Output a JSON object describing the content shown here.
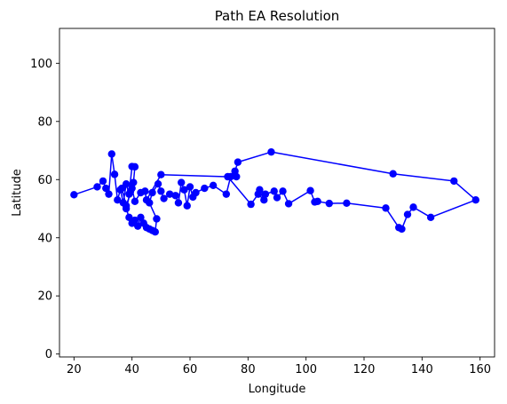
{
  "chart_data": {
    "type": "line",
    "title": "Path EA Resolution",
    "xlabel": "Longitude",
    "ylabel": "Latitude",
    "xlim": [
      15,
      165
    ],
    "ylim": [
      -1,
      112
    ],
    "xticks": [
      20,
      40,
      60,
      80,
      100,
      120,
      140,
      160
    ],
    "yticks": [
      0,
      20,
      40,
      60,
      80,
      100
    ],
    "grid": false,
    "legend": "none",
    "series": [
      {
        "color": "#0000ff",
        "marker": "circle",
        "points": [
          [
            20.0,
            54.8
          ],
          [
            28.0,
            57.5
          ],
          [
            30.0,
            59.5
          ],
          [
            31.0,
            57.0
          ],
          [
            32.0,
            55.0
          ],
          [
            33.0,
            68.8
          ],
          [
            34.0,
            61.8
          ],
          [
            35.0,
            53.0
          ],
          [
            36.0,
            56.5
          ],
          [
            37.0,
            52.0
          ],
          [
            38.0,
            58.5
          ],
          [
            39.0,
            55.0
          ],
          [
            40.0,
            64.5
          ],
          [
            41.0,
            64.4
          ],
          [
            40.5,
            59.0
          ],
          [
            39.5,
            56.0
          ],
          [
            38.0,
            50.0
          ],
          [
            39.0,
            47.0
          ],
          [
            40.0,
            45.0
          ],
          [
            41.0,
            46.0
          ],
          [
            42.0,
            44.0
          ],
          [
            43.0,
            47.0
          ],
          [
            44.0,
            45.0
          ],
          [
            45.0,
            43.5
          ],
          [
            46.0,
            43.0
          ],
          [
            47.0,
            42.5
          ],
          [
            48.0,
            42.0
          ],
          [
            48.5,
            46.5
          ],
          [
            46.0,
            52.0
          ],
          [
            47.0,
            55.5
          ],
          [
            49.0,
            58.5
          ],
          [
            50.0,
            56.0
          ],
          [
            51.0,
            53.5
          ],
          [
            53.0,
            55.0
          ],
          [
            55.0,
            54.5
          ],
          [
            56.0,
            52.0
          ],
          [
            57.0,
            59.0
          ],
          [
            58.0,
            56.5
          ],
          [
            59.0,
            51.0
          ],
          [
            60.0,
            57.5
          ],
          [
            61.0,
            54.0
          ],
          [
            62.0,
            55.5
          ],
          [
            65.0,
            57.0
          ],
          [
            68.0,
            58.0
          ],
          [
            72.5,
            55.0
          ],
          [
            74.0,
            61.0
          ],
          [
            76.0,
            61.0
          ],
          [
            75.5,
            62.9
          ],
          [
            76.5,
            66.0
          ],
          [
            88.0,
            69.5
          ],
          [
            130.0,
            62.0
          ],
          [
            151.0,
            59.5
          ],
          [
            158.5,
            53.0
          ],
          [
            143.0,
            47.0
          ],
          [
            137.0,
            50.5
          ],
          [
            135.0,
            48.0
          ],
          [
            133.0,
            43.0
          ],
          [
            132.0,
            43.5
          ],
          [
            127.5,
            50.2
          ],
          [
            114.0,
            51.9
          ],
          [
            108.0,
            51.8
          ],
          [
            104.0,
            52.5
          ],
          [
            103.0,
            52.3
          ],
          [
            101.5,
            56.2
          ],
          [
            94.0,
            51.7
          ],
          [
            92.0,
            56.0
          ],
          [
            90.0,
            53.8
          ],
          [
            89.0,
            56.0
          ],
          [
            86.0,
            55.0
          ],
          [
            84.0,
            56.5
          ],
          [
            85.5,
            53.0
          ],
          [
            83.5,
            55.0
          ],
          [
            81.0,
            51.5
          ],
          [
            73.0,
            61.0
          ],
          [
            50.0,
            61.7
          ],
          [
            45.0,
            53.0
          ],
          [
            44.5,
            56.0
          ],
          [
            43.0,
            55.5
          ],
          [
            41.0,
            52.5
          ],
          [
            40.0,
            57.0
          ],
          [
            38.0,
            51.0
          ],
          [
            36.5,
            57.0
          ]
        ]
      }
    ]
  }
}
